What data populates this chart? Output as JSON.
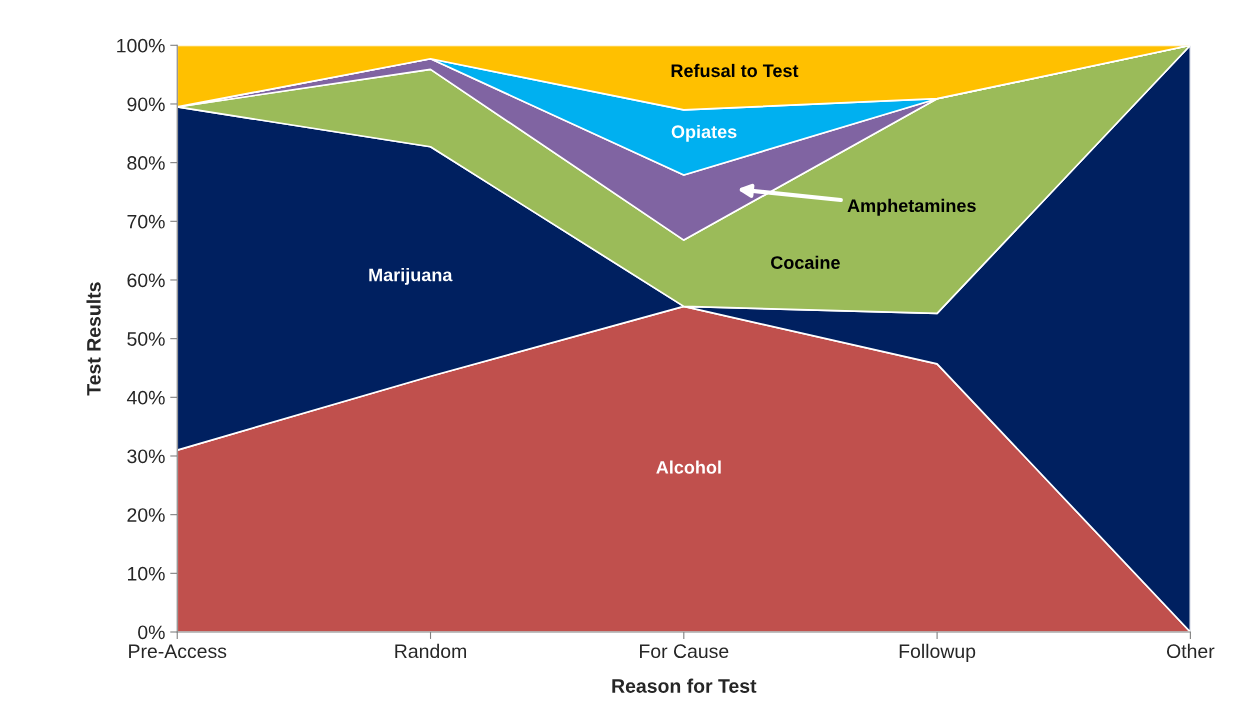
{
  "chart_data": {
    "type": "area",
    "stacked": true,
    "xlabel": "Reason for Test",
    "ylabel": "Test Results",
    "categories": [
      "Pre-Access",
      "Random",
      "For Cause",
      "Followup",
      "Other"
    ],
    "ylim": [
      0,
      100
    ],
    "yticks": [
      {
        "value": 0,
        "label": "0%"
      },
      {
        "value": 10,
        "label": "10%"
      },
      {
        "value": 20,
        "label": "20%"
      },
      {
        "value": 30,
        "label": "30%"
      },
      {
        "value": 40,
        "label": "40%"
      },
      {
        "value": 50,
        "label": "50%"
      },
      {
        "value": 60,
        "label": "60%"
      },
      {
        "value": 70,
        "label": "70%"
      },
      {
        "value": 80,
        "label": "80%"
      },
      {
        "value": 90,
        "label": "90%"
      },
      {
        "value": 100,
        "label": "100%"
      }
    ],
    "series": [
      {
        "name": "Alcohol",
        "color": "#c0504d",
        "values": [
          31,
          43.6,
          55.5,
          45.7,
          0
        ]
      },
      {
        "name": "Marijuana",
        "color": "#002060",
        "values": [
          58.5,
          39.1,
          0,
          8.6,
          100
        ]
      },
      {
        "name": "Cocaine",
        "color": "#9bbb59",
        "values": [
          0,
          13.2,
          11.3,
          36.6,
          0
        ]
      },
      {
        "name": "Amphetamines",
        "color": "#8064a2",
        "values": [
          0,
          1.8,
          11.1,
          0,
          0
        ]
      },
      {
        "name": "Opiates",
        "color": "#00b0f0",
        "values": [
          0,
          0,
          11.1,
          0,
          0
        ]
      },
      {
        "name": "Refusal to Test",
        "color": "#ffc000",
        "values": [
          10.5,
          2.3,
          11.0,
          9.1,
          0
        ]
      }
    ],
    "legend": false,
    "grid": false
  }
}
